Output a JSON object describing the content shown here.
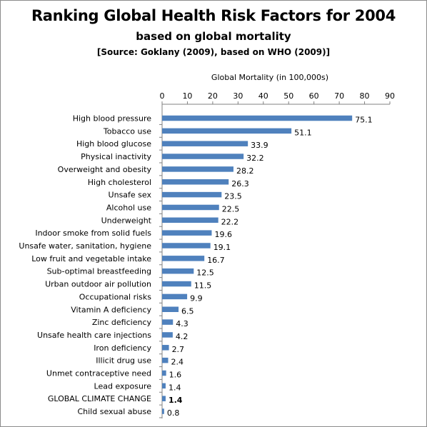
{
  "chart_data": {
    "type": "bar",
    "orientation": "horizontal",
    "title": "Ranking Global Health Risk Factors for 2004",
    "subtitle": "based on global mortality",
    "source": "[Source: Goklany (2009), based on WHO (2009)]",
    "xlabel": "Global Mortality (in 100,000s)",
    "xlim": [
      0,
      90
    ],
    "xticks": [
      0,
      10,
      20,
      30,
      40,
      50,
      60,
      70,
      80,
      90
    ],
    "x_axis_position": "top",
    "grid": false,
    "bar_color": "#4f81bd",
    "highlight_color": "#ff0000",
    "categories": [
      "High blood pressure",
      "Tobacco use",
      "High blood glucose",
      "Physical inactivity",
      "Overweight and obesity",
      "High cholesterol",
      "Unsafe sex",
      "Alcohol use",
      "Underweight",
      "Indoor smoke from solid fuels",
      "Unsafe water, sanitation, hygiene",
      "Low fruit and vegetable  intake",
      "Sub-optimal breastfeeding",
      "Urban outdoor air pollution",
      "Occupational  risks",
      "Vitamin A deficiency",
      "Zinc deficiency",
      "Unsafe health care injections",
      "Iron deficiency",
      "Illicit drug use",
      "Unmet contraceptive need",
      "Lead exposure",
      "GLOBAL CLIMATE CHANGE",
      "Child sexual abuse"
    ],
    "values": [
      75.1,
      51.1,
      33.9,
      32.2,
      28.2,
      26.3,
      23.5,
      22.5,
      22.2,
      19.6,
      19.1,
      16.7,
      12.5,
      11.5,
      9.9,
      6.5,
      4.3,
      4.2,
      2.7,
      2.4,
      1.6,
      1.4,
      1.4,
      0.8
    ],
    "value_labels": [
      "75.1",
      "51.1",
      "33.9",
      "32.2",
      "28.2",
      "26.3",
      "23.5",
      "22.5",
      "22.2",
      "19.6",
      "19.1",
      "16.7",
      "12.5",
      "11.5",
      "9.9",
      "6.5",
      "4.3",
      "4.2",
      "2.7",
      "2.4",
      "1.6",
      "1.4",
      "1.4",
      "0.8"
    ],
    "highlighted_category": "GLOBAL CLIMATE CHANGE"
  }
}
